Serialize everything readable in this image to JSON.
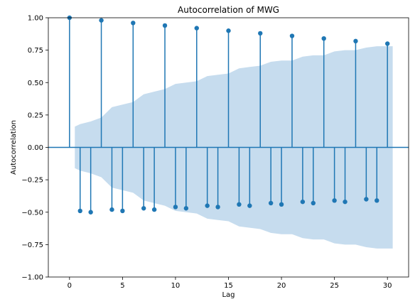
{
  "chart_data": {
    "type": "scatter",
    "title": "Autocorrelation of MWG",
    "xlabel": "Lag",
    "ylabel": "Autocorrelation",
    "xlim": [
      -2,
      32
    ],
    "ylim": [
      -1.0,
      1.0
    ],
    "xticks": [
      0,
      5,
      10,
      15,
      20,
      25,
      30
    ],
    "xtick_labels": [
      "0",
      "5",
      "10",
      "15",
      "20",
      "25",
      "30"
    ],
    "yticks": [
      -1.0,
      -0.75,
      -0.5,
      -0.25,
      0.0,
      0.25,
      0.5,
      0.75,
      1.0
    ],
    "ytick_labels": [
      "−1.00",
      "−0.75",
      "−0.50",
      "−0.25",
      "0.00",
      "0.25",
      "0.50",
      "0.75",
      "1.00"
    ],
    "grid": false,
    "legend": "none",
    "series": [
      {
        "kind": "stem",
        "x": [
          0,
          1,
          2,
          3,
          4,
          5,
          6,
          7,
          8,
          9,
          10,
          11,
          12,
          13,
          14,
          15,
          16,
          17,
          18,
          19,
          20,
          21,
          22,
          23,
          24,
          25,
          26,
          27,
          28,
          29,
          30
        ],
        "values": [
          1.0,
          -0.49,
          -0.5,
          0.98,
          -0.48,
          -0.49,
          0.96,
          -0.47,
          -0.48,
          0.94,
          -0.46,
          -0.47,
          0.92,
          -0.45,
          -0.46,
          0.9,
          -0.44,
          -0.45,
          0.88,
          -0.43,
          -0.44,
          0.86,
          -0.42,
          -0.43,
          0.84,
          -0.41,
          -0.42,
          0.82,
          -0.4,
          -0.41,
          0.8
        ]
      }
    ],
    "confidence_band": {
      "x": [
        0.5,
        1,
        2,
        3,
        4,
        5,
        6,
        7,
        8,
        9,
        10,
        11,
        12,
        13,
        14,
        15,
        16,
        17,
        18,
        19,
        20,
        21,
        22,
        23,
        24,
        25,
        26,
        27,
        28,
        29,
        30,
        30.5
      ],
      "upper": [
        0.16,
        0.18,
        0.2,
        0.23,
        0.31,
        0.33,
        0.35,
        0.41,
        0.43,
        0.45,
        0.49,
        0.5,
        0.51,
        0.55,
        0.56,
        0.57,
        0.61,
        0.62,
        0.63,
        0.66,
        0.67,
        0.67,
        0.7,
        0.71,
        0.71,
        0.74,
        0.75,
        0.75,
        0.77,
        0.78,
        0.78,
        0.78
      ]
    },
    "colors": {
      "stem": "#1f77b4",
      "band": "#c6dcee",
      "zero_line": "#1f77b4",
      "axes": "#000000"
    }
  }
}
